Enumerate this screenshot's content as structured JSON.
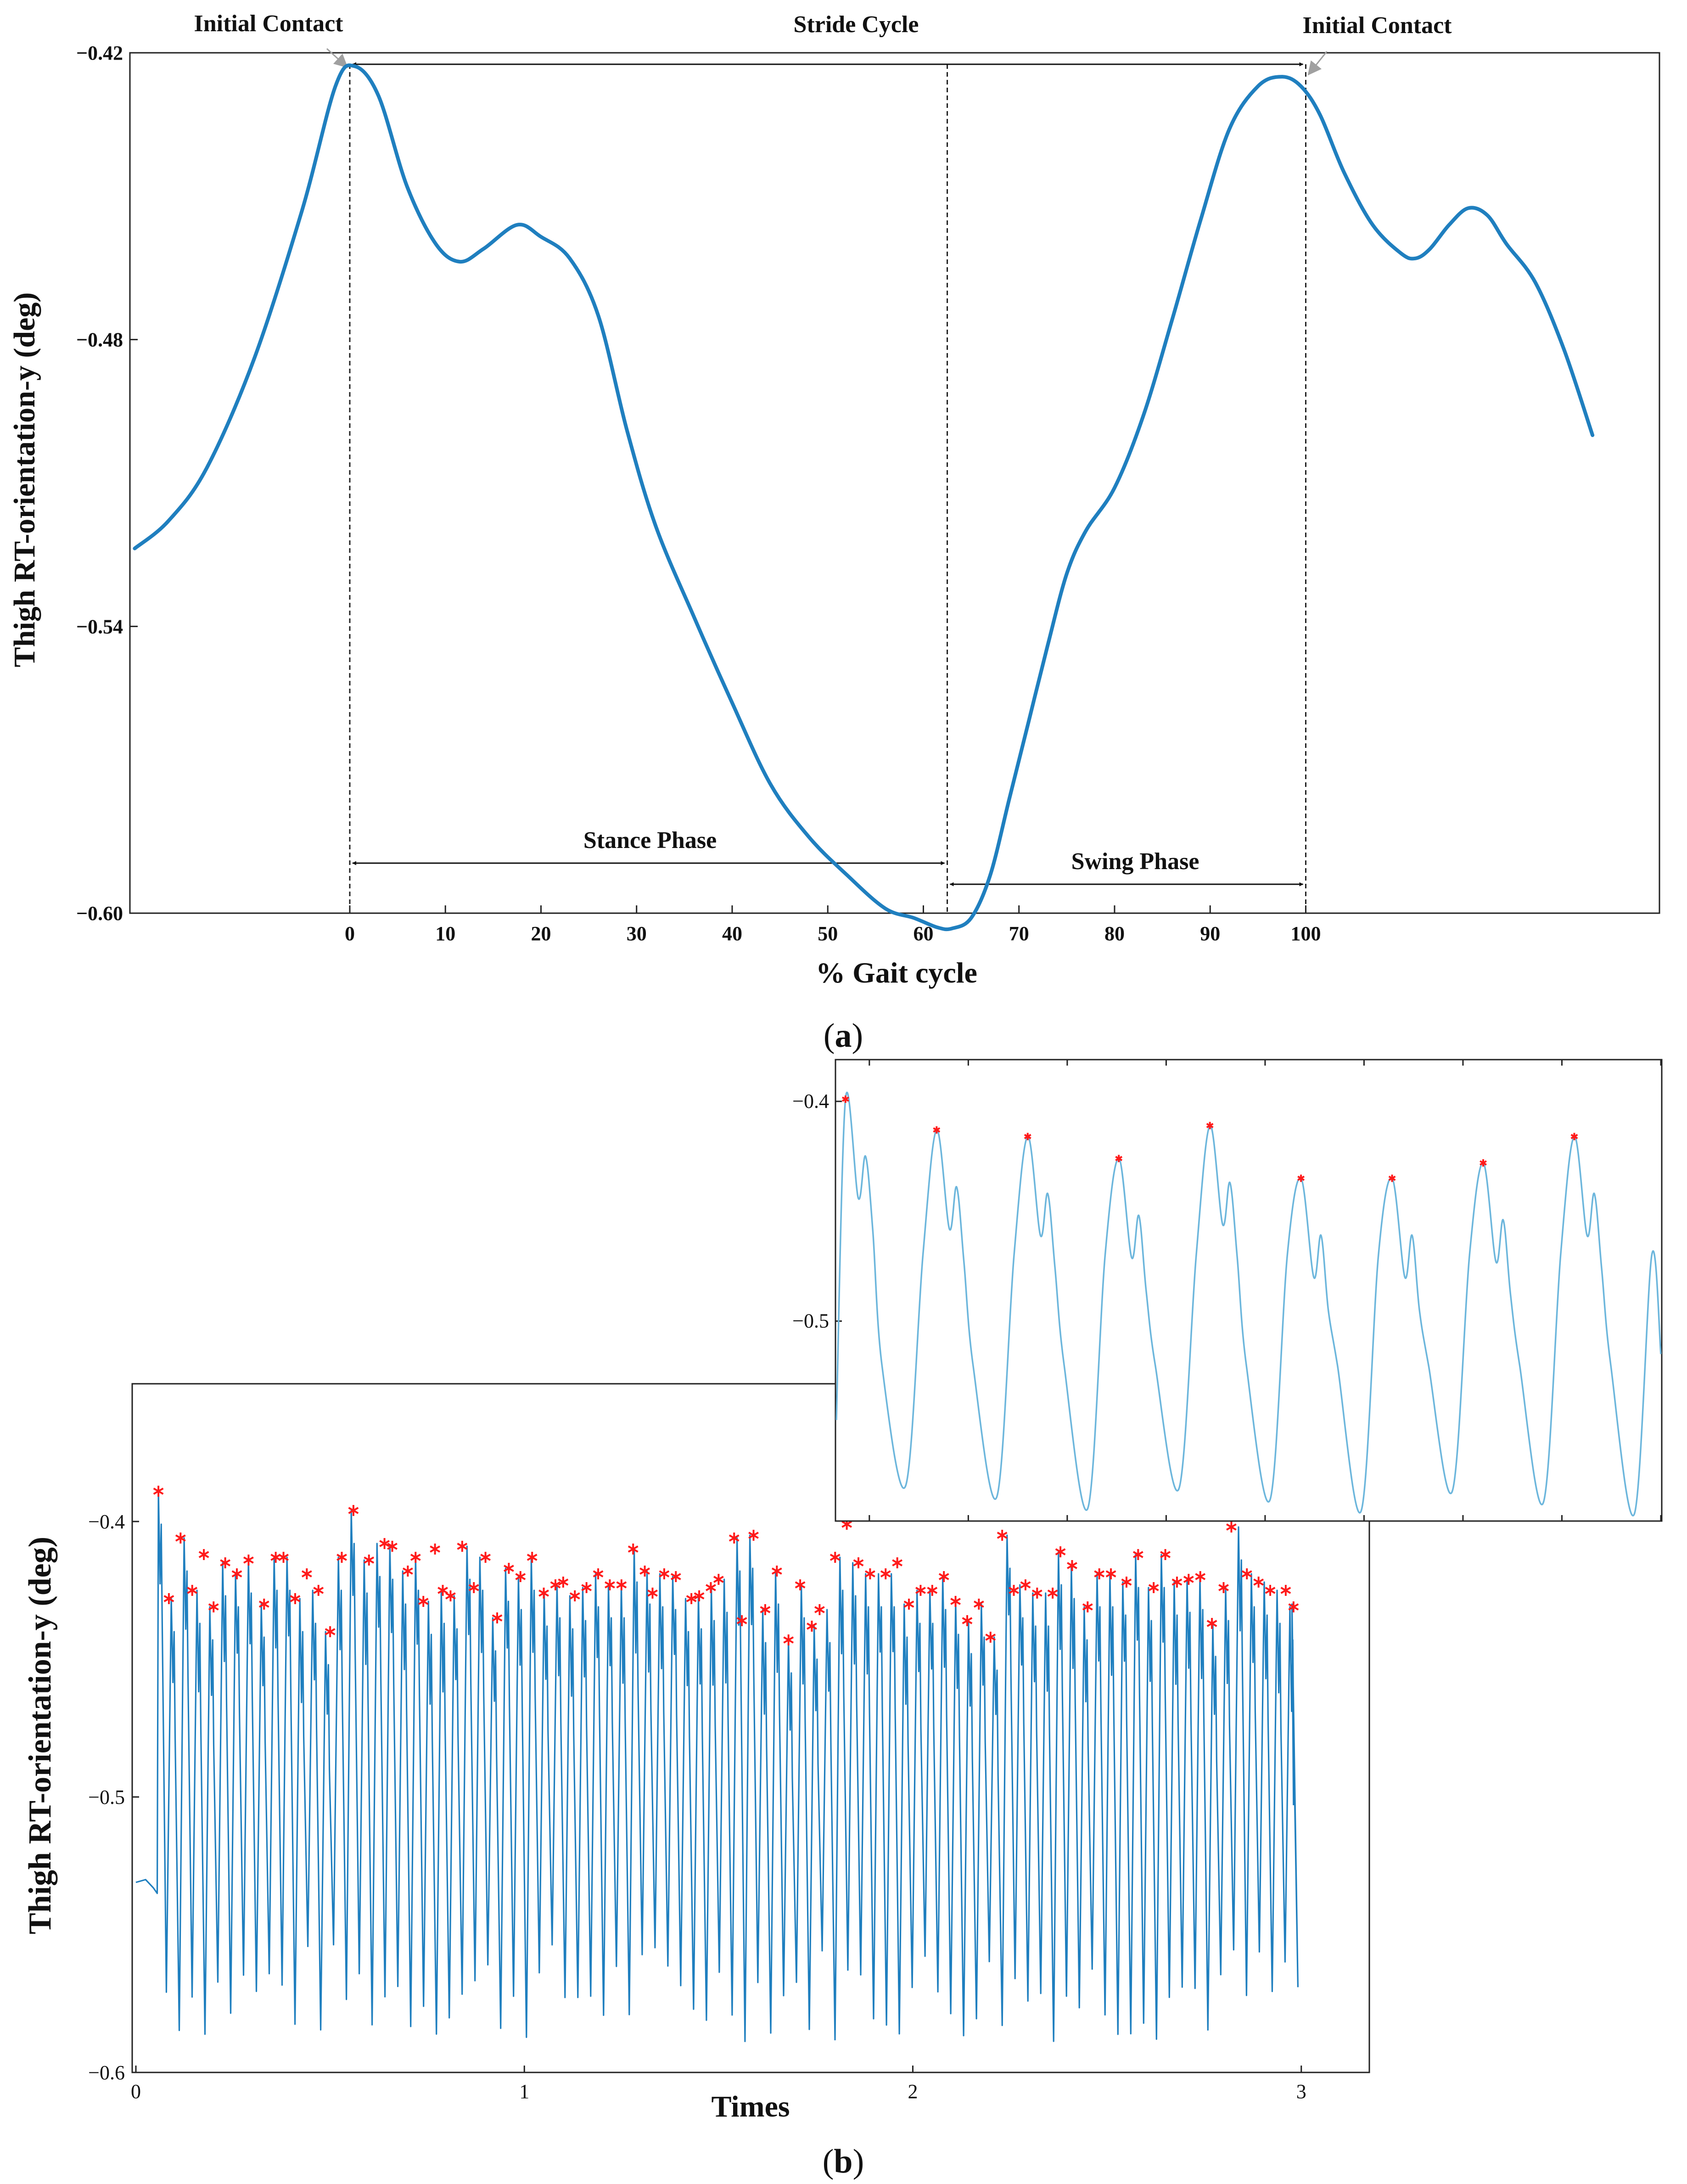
{
  "colors": {
    "main_line": "#1f7fbf",
    "detail_line": "#6cb6dc",
    "peak_marker": "#ff1a1a",
    "arrow_gray": "#a0a0a0",
    "ink": "#111111"
  },
  "panel_a": {
    "caption_open": "(",
    "caption_letter": "a",
    "caption_close": ")",
    "annotations": {
      "initial_contact_left": "Initial Contact",
      "initial_contact_right": "Initial Contact",
      "stride_cycle": "Stride Cycle",
      "stance_phase": "Stance Phase",
      "swing_phase": "Swing Phase"
    }
  },
  "panel_b": {
    "caption_open": "(",
    "caption_letter": "b",
    "caption_close": ")"
  },
  "chart_data": [
    {
      "id": "a",
      "type": "line",
      "title": "",
      "xlabel": "% Gait cycle",
      "ylabel": "Thigh RT-orientation-y (deg)",
      "xlim": [
        -23,
        137
      ],
      "ylim": [
        -0.6,
        -0.42
      ],
      "x_ticks": [
        0,
        10,
        20,
        30,
        40,
        50,
        60,
        70,
        80,
        90,
        100
      ],
      "x_tick_labels": [
        "0",
        "10",
        "20",
        "30",
        "40",
        "50",
        "60",
        "70",
        "80",
        "90",
        "100"
      ],
      "y_ticks": [
        -0.42,
        -0.48,
        -0.54,
        -0.6
      ],
      "y_tick_labels": [
        "−0.42",
        "−0.48",
        "−0.54",
        "−0.60"
      ],
      "series": [
        {
          "name": "Thigh RT-orientation-y",
          "x": [
            -22.5,
            -19,
            -15,
            -10,
            -5,
            -1.5,
            0.5,
            3,
            6,
            9,
            11.5,
            14,
            17.5,
            20,
            23,
            26,
            29,
            32,
            36,
            40,
            44,
            48,
            52,
            56,
            59,
            61.5,
            63,
            65,
            67,
            69,
            71,
            73,
            75,
            77,
            80,
            83,
            86,
            89,
            92,
            95,
            97.5,
            99.5,
            101.5,
            104,
            107,
            110,
            111.5,
            113,
            115,
            117,
            119,
            121,
            124,
            127,
            130,
            129.5
          ],
          "values": [
            -0.5237,
            -0.518,
            -0.507,
            -0.484,
            -0.453,
            -0.427,
            -0.4228,
            -0.429,
            -0.448,
            -0.46,
            -0.4637,
            -0.461,
            -0.456,
            -0.4585,
            -0.463,
            -0.475,
            -0.499,
            -0.519,
            -0.538,
            -0.556,
            -0.573,
            -0.584,
            -0.592,
            -0.599,
            -0.601,
            -0.603,
            -0.6032,
            -0.601,
            -0.592,
            -0.576,
            -0.56,
            -0.544,
            -0.529,
            -0.52,
            -0.511,
            -0.496,
            -0.476,
            -0.455,
            -0.436,
            -0.427,
            -0.425,
            -0.427,
            -0.433,
            -0.445,
            -0.456,
            -0.462,
            -0.463,
            -0.461,
            -0.456,
            -0.4525,
            -0.454,
            -0.46,
            -0.468,
            -0.482,
            -0.5,
            -0.503
          ]
        }
      ],
      "annotations": {
        "initial_contact_x": [
          0,
          100
        ],
        "toe_off_x": 62.5,
        "stance_phase_x": [
          0,
          62.5
        ],
        "swing_phase_x": [
          62.5,
          100
        ],
        "stride_cycle_x": [
          0,
          100
        ]
      }
    },
    {
      "id": "b",
      "type": "line",
      "title": "",
      "xlabel": "Times",
      "ylabel": "Thigh RT-orientation-y (deg)",
      "xlim": [
        0,
        3.2
      ],
      "ylim": [
        -0.6,
        -0.35
      ],
      "x_ticks": [
        0,
        1,
        2,
        3
      ],
      "x_tick_labels": [
        "0",
        "1",
        "2",
        "3"
      ],
      "y_ticks": [
        -0.4,
        -0.5,
        -0.6
      ],
      "y_tick_labels": [
        "−0.4",
        "−0.5",
        "−0.6"
      ],
      "series": [
        {
          "name": "Thigh RT-orientation-y",
          "signal": {
            "t_start": 0,
            "t_flat_end": 0.055,
            "flat_level": -0.531,
            "stride_period": 0.0331,
            "t_end": 2.98,
            "end_value": -0.503,
            "min_range": [
              -0.589,
              -0.552
            ]
          },
          "peak_markers": {
            "t": [
              0.058,
              0.085,
              0.115,
              0.145,
              0.175,
              0.2,
              0.23,
              0.26,
              0.29,
              0.33,
              0.36,
              0.38,
              0.41,
              0.44,
              0.47,
              0.5,
              0.53,
              0.56,
              0.6,
              0.64,
              0.66,
              0.7,
              0.72,
              0.74,
              0.77,
              0.79,
              0.81,
              0.84,
              0.87,
              0.9,
              0.93,
              0.96,
              0.99,
              1.02,
              1.05,
              1.08,
              1.1,
              1.13,
              1.16,
              1.19,
              1.22,
              1.25,
              1.28,
              1.31,
              1.33,
              1.36,
              1.39,
              1.43,
              1.45,
              1.48,
              1.5,
              1.54,
              1.56,
              1.59,
              1.62,
              1.65,
              1.68,
              1.71,
              1.74,
              1.76,
              1.8,
              1.83,
              1.86,
              1.89,
              1.93,
              1.96,
              1.99,
              2.02,
              2.05,
              2.08,
              2.11,
              2.14,
              2.17,
              2.2,
              2.23,
              2.26,
              2.29,
              2.32,
              2.36,
              2.38,
              2.41,
              2.45,
              2.48,
              2.51,
              2.55,
              2.58,
              2.62,
              2.65,
              2.68,
              2.71,
              2.74,
              2.77,
              2.8,
              2.82,
              2.86,
              2.89,
              2.92,
              2.96,
              2.98
            ],
            "values": [
              -0.389,
              -0.428,
              -0.406,
              -0.425,
              -0.412,
              -0.431,
              -0.415,
              -0.419,
              -0.414,
              -0.43,
              -0.413,
              -0.413,
              -0.428,
              -0.419,
              -0.425,
              -0.44,
              -0.413,
              -0.396,
              -0.414,
              -0.408,
              -0.409,
              -0.418,
              -0.413,
              -0.429,
              -0.41,
              -0.425,
              -0.427,
              -0.409,
              -0.424,
              -0.413,
              -0.435,
              -0.417,
              -0.42,
              -0.413,
              -0.426,
              -0.423,
              -0.422,
              -0.427,
              -0.424,
              -0.419,
              -0.423,
              -0.423,
              -0.41,
              -0.418,
              -0.426,
              -0.419,
              -0.42,
              -0.428,
              -0.427,
              -0.424,
              -0.421,
              -0.406,
              -0.436,
              -0.405,
              -0.432,
              -0.418,
              -0.443,
              -0.423,
              -0.438,
              -0.432,
              -0.413,
              -0.401,
              -0.415,
              -0.419,
              -0.419,
              -0.415,
              -0.43,
              -0.425,
              -0.425,
              -0.42,
              -0.429,
              -0.436,
              -0.43,
              -0.442,
              -0.405,
              -0.425,
              -0.423,
              -0.426,
              -0.426,
              -0.411,
              -0.416,
              -0.431,
              -0.419,
              -0.419,
              -0.422,
              -0.412,
              -0.424,
              -0.412,
              -0.422,
              -0.421,
              -0.42,
              -0.437,
              -0.424,
              -0.402,
              -0.419,
              -0.422,
              -0.425,
              -0.425,
              -0.431
            ]
          }
        }
      ],
      "inset": {
        "x_range_shown": [
          0.06,
          0.31
        ],
        "y_ticks": [
          -0.4,
          -0.5
        ],
        "y_tick_labels": [
          "−0.4",
          "−0.5"
        ],
        "ylim": [
          -0.591,
          -0.381
        ],
        "peak_values": [
          -0.399,
          -0.413,
          -0.416,
          -0.426,
          -0.411,
          -0.435,
          -0.435,
          -0.428,
          -0.416
        ]
      }
    }
  ]
}
